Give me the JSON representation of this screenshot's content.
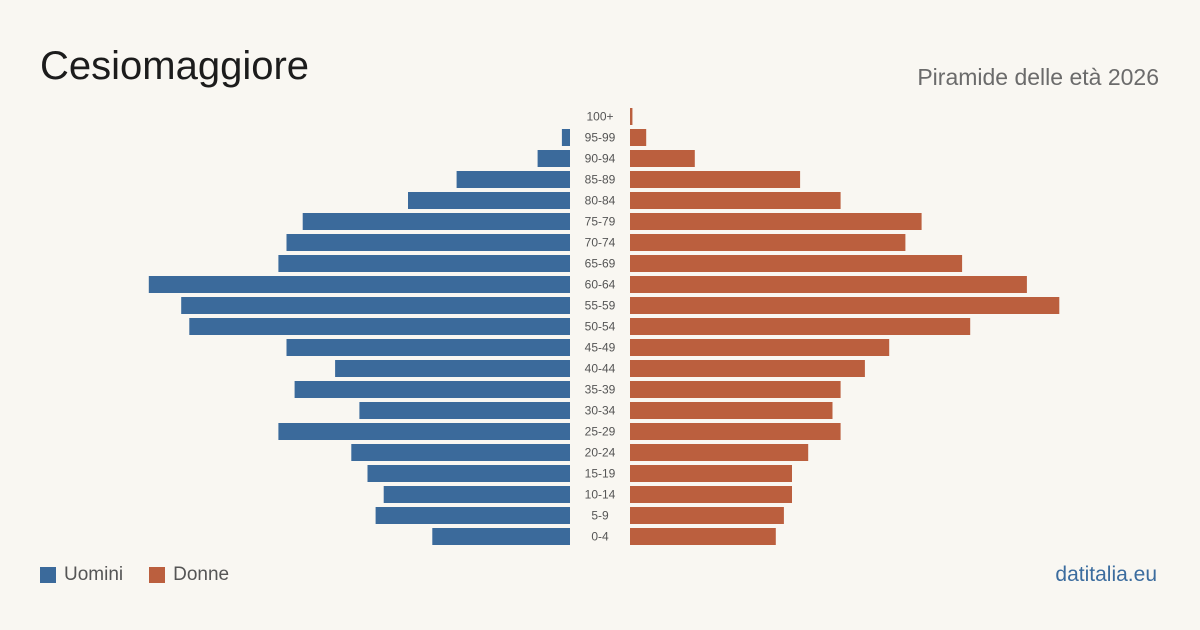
{
  "header": {
    "title": "Cesiomaggiore",
    "subtitle": "Piramide delle età 2026"
  },
  "legend": {
    "men_label": "Uomini",
    "women_label": "Donne"
  },
  "footer": {
    "source": "datitalia.eu"
  },
  "colors": {
    "men": "#3b6a9b",
    "women": "#bb5f3e",
    "tick_label": "#555555",
    "background": "#f9f7f2"
  },
  "chart_data": {
    "type": "bar",
    "orientation": "horizontal-pyramid",
    "categories": [
      "100+",
      "95-99",
      "90-94",
      "85-89",
      "80-84",
      "75-79",
      "70-74",
      "65-69",
      "60-64",
      "55-59",
      "50-54",
      "45-49",
      "40-44",
      "35-39",
      "30-34",
      "25-29",
      "20-24",
      "15-19",
      "10-14",
      "5-9",
      "0-4"
    ],
    "series": [
      {
        "name": "Uomini",
        "values": [
          0,
          1,
          4,
          14,
          20,
          33,
          35,
          36,
          52,
          48,
          47,
          35,
          29,
          34,
          26,
          36,
          27,
          25,
          23,
          24,
          17
        ]
      },
      {
        "name": "Donne",
        "values": [
          0.3,
          2,
          8,
          21,
          26,
          36,
          34,
          41,
          49,
          53,
          42,
          32,
          29,
          26,
          25,
          26,
          22,
          20,
          20,
          19,
          18
        ]
      }
    ],
    "grid": false,
    "legend_position": "bottom-left"
  }
}
